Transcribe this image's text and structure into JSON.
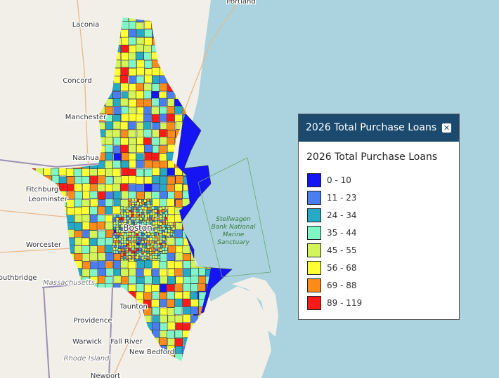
{
  "panel": {
    "header": "2026 Total Purchase Loans",
    "title": "2026 Total Purchase Loans",
    "legend": [
      {
        "label": "0 - 10",
        "color": "#1414f5"
      },
      {
        "label": "11 - 23",
        "color": "#4a7ef0"
      },
      {
        "label": "24 - 34",
        "color": "#26a9c4"
      },
      {
        "label": "35 - 44",
        "color": "#80f5c6"
      },
      {
        "label": "45 - 55",
        "color": "#d4f55a"
      },
      {
        "label": "56 - 68",
        "color": "#ffff33"
      },
      {
        "label": "69 - 88",
        "color": "#ff8c1a"
      },
      {
        "label": "89 - 119",
        "color": "#ff1a1a"
      }
    ]
  },
  "places": [
    "Portland",
    "Laconia",
    "Concord",
    "Manchester",
    "Nashua",
    "Fitchburg",
    "Leominster",
    "Worcester",
    "Southbridge",
    "Massachusetts",
    "Providence",
    "Taunton",
    "Warwick",
    "Fall River",
    "New Bedford",
    "Rhode Island",
    "Newport",
    "Boston"
  ],
  "sanctuary": [
    "Stellwagen",
    "Bank National",
    "Marine",
    "Sanctuary"
  ]
}
